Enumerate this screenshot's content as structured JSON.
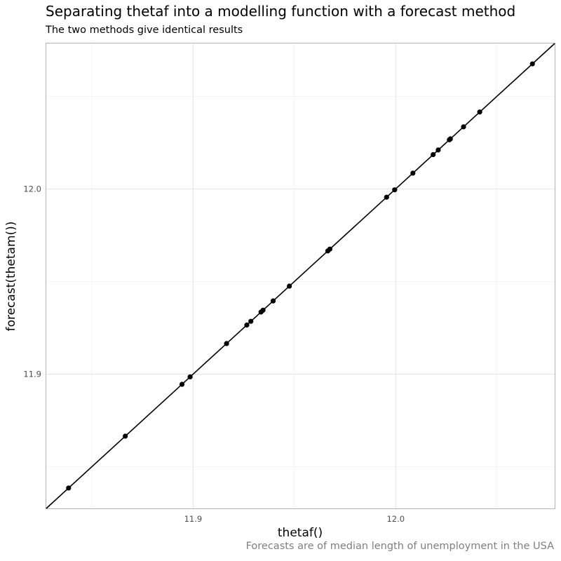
{
  "chart_data": {
    "type": "scatter",
    "title": "Separating thetaf into a modelling function with a forecast method",
    "subtitle": "The two methods give identical results",
    "caption": "Forecasts are of median length of unemployment in the USA",
    "xlabel": "thetaf()",
    "ylabel": "forecast(thetam())",
    "xlim": [
      11.8275,
      12.0785
    ],
    "ylim": [
      11.8275,
      12.0785
    ],
    "x_ticks": [
      11.9,
      12.0
    ],
    "x_tick_labels": [
      "11.9",
      "12.0"
    ],
    "y_ticks": [
      11.9,
      12.0
    ],
    "y_tick_labels": [
      "11.9",
      "12.0"
    ],
    "x_minor_breaks": [
      11.85,
      11.95,
      12.05
    ],
    "y_minor_breaks": [
      11.85,
      11.95,
      12.05
    ],
    "grid": true,
    "reference_line": "y = x",
    "point_color": "#000000",
    "line_color": "#000000",
    "points": [
      {
        "x": 11.8385,
        "y": 11.8385
      },
      {
        "x": 11.8665,
        "y": 11.8665
      },
      {
        "x": 11.8945,
        "y": 11.8945
      },
      {
        "x": 11.8985,
        "y": 11.8985
      },
      {
        "x": 11.9165,
        "y": 11.9165
      },
      {
        "x": 11.9265,
        "y": 11.9265
      },
      {
        "x": 11.9285,
        "y": 11.9285
      },
      {
        "x": 11.9335,
        "y": 11.9335
      },
      {
        "x": 11.9345,
        "y": 11.9345
      },
      {
        "x": 11.9395,
        "y": 11.9395
      },
      {
        "x": 11.9475,
        "y": 11.9475
      },
      {
        "x": 11.9665,
        "y": 11.9665
      },
      {
        "x": 11.9675,
        "y": 11.9675
      },
      {
        "x": 11.9955,
        "y": 11.9955
      },
      {
        "x": 11.9995,
        "y": 11.9995
      },
      {
        "x": 12.0085,
        "y": 12.0085
      },
      {
        "x": 12.0185,
        "y": 12.0185
      },
      {
        "x": 12.021,
        "y": 12.021
      },
      {
        "x": 12.0265,
        "y": 12.0265
      },
      {
        "x": 12.027,
        "y": 12.027
      },
      {
        "x": 12.0335,
        "y": 12.0335
      },
      {
        "x": 12.0415,
        "y": 12.0415
      },
      {
        "x": 12.0675,
        "y": 12.0675
      }
    ]
  }
}
